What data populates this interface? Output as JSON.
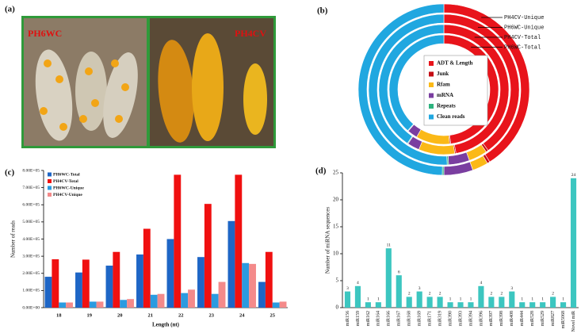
{
  "photo": {
    "panel_label": "(a)",
    "left_label": "PH6WC",
    "right_label": "PH4CV"
  },
  "chart_data": [
    {
      "type": "donut",
      "panel_label": "(b)",
      "categories": [
        "ADT & Length",
        "Junk",
        "Rfam",
        "mRNA",
        "Repeats",
        "Clean reads"
      ],
      "colors": [
        "#e8141b",
        "#c40d14",
        "#fbb917",
        "#7a3ea0",
        "#2db37e",
        "#20a7e0"
      ],
      "series": [
        {
          "name": "PH4CV-Unique",
          "values": [
            41,
            0.5,
            3,
            5.5,
            0.3,
            49.7
          ]
        },
        {
          "name": "PH6WC-Unique",
          "values": [
            40,
            0.5,
            4,
            4.5,
            0.3,
            50.7
          ]
        },
        {
          "name": "PH4CV-Total",
          "values": [
            47,
            0.3,
            9,
            3,
            0.2,
            40.5
          ]
        },
        {
          "name": "PH6WC-Total",
          "values": [
            48,
            0.3,
            10,
            3,
            0.2,
            38.5
          ]
        }
      ]
    },
    {
      "type": "bar",
      "panel_label": "(c)",
      "xlabel": "Length (nt)",
      "ylabel": "Number of reads",
      "categories": [
        "18",
        "19",
        "20",
        "21",
        "22",
        "23",
        "24",
        "25"
      ],
      "series": [
        {
          "name": "PH6WC-Total",
          "color": "#1e66c6",
          "values": [
            180000,
            205000,
            245000,
            310000,
            400000,
            295000,
            505000,
            150000
          ]
        },
        {
          "name": "PH4CV-Total",
          "color": "#f01010",
          "values": [
            282000,
            280000,
            325000,
            460000,
            775000,
            605000,
            775000,
            325000
          ]
        },
        {
          "name": "PH6WC-Unique",
          "color": "#2b9be0",
          "values": [
            30000,
            35000,
            45000,
            75000,
            85000,
            80000,
            260000,
            30000
          ]
        },
        {
          "name": "PH4CV-Unique",
          "color": "#f48a8a",
          "values": [
            30000,
            35000,
            50000,
            80000,
            105000,
            150000,
            255000,
            35000
          ]
        }
      ],
      "ylim": [
        0,
        800000
      ],
      "yticks": [
        {
          "value": 0,
          "label": "0.00E+00"
        },
        {
          "value": 100000,
          "label": "1.00E+05"
        },
        {
          "value": 200000,
          "label": "2.00E+05"
        },
        {
          "value": 300000,
          "label": "3.00E+05"
        },
        {
          "value": 400000,
          "label": "4.00E+05"
        },
        {
          "value": 500000,
          "label": "5.00E+05"
        },
        {
          "value": 600000,
          "label": "6.00E+05"
        },
        {
          "value": 700000,
          "label": "7.00E+05"
        },
        {
          "value": 800000,
          "label": "8.00E+05"
        }
      ],
      "legend": "upper left",
      "grid": false
    },
    {
      "type": "bar",
      "panel_label": "(d)",
      "ylabel": "Number of miRNA sequences",
      "categories": [
        "miR156",
        "miR159",
        "miR162",
        "miR164",
        "miR166",
        "miR167",
        "miR168",
        "miR169",
        "miR171",
        "miR319",
        "miR390",
        "miR393",
        "miR394",
        "miR396",
        "miR397",
        "miR398",
        "miR408",
        "miR444",
        "miR528",
        "miR529",
        "miR827",
        "miR5068",
        "Novel miR"
      ],
      "values": [
        3,
        4,
        1,
        1,
        11,
        6,
        2,
        3,
        2,
        2,
        1,
        1,
        1,
        4,
        2,
        2,
        3,
        1,
        1,
        1,
        2,
        1,
        24
      ],
      "color": "#3cc6c0",
      "ylim": [
        0,
        25
      ],
      "yticks": [
        0,
        5,
        10,
        15,
        20,
        25
      ],
      "data_labels": true,
      "xtick_rotation": 90,
      "grid": false
    }
  ]
}
